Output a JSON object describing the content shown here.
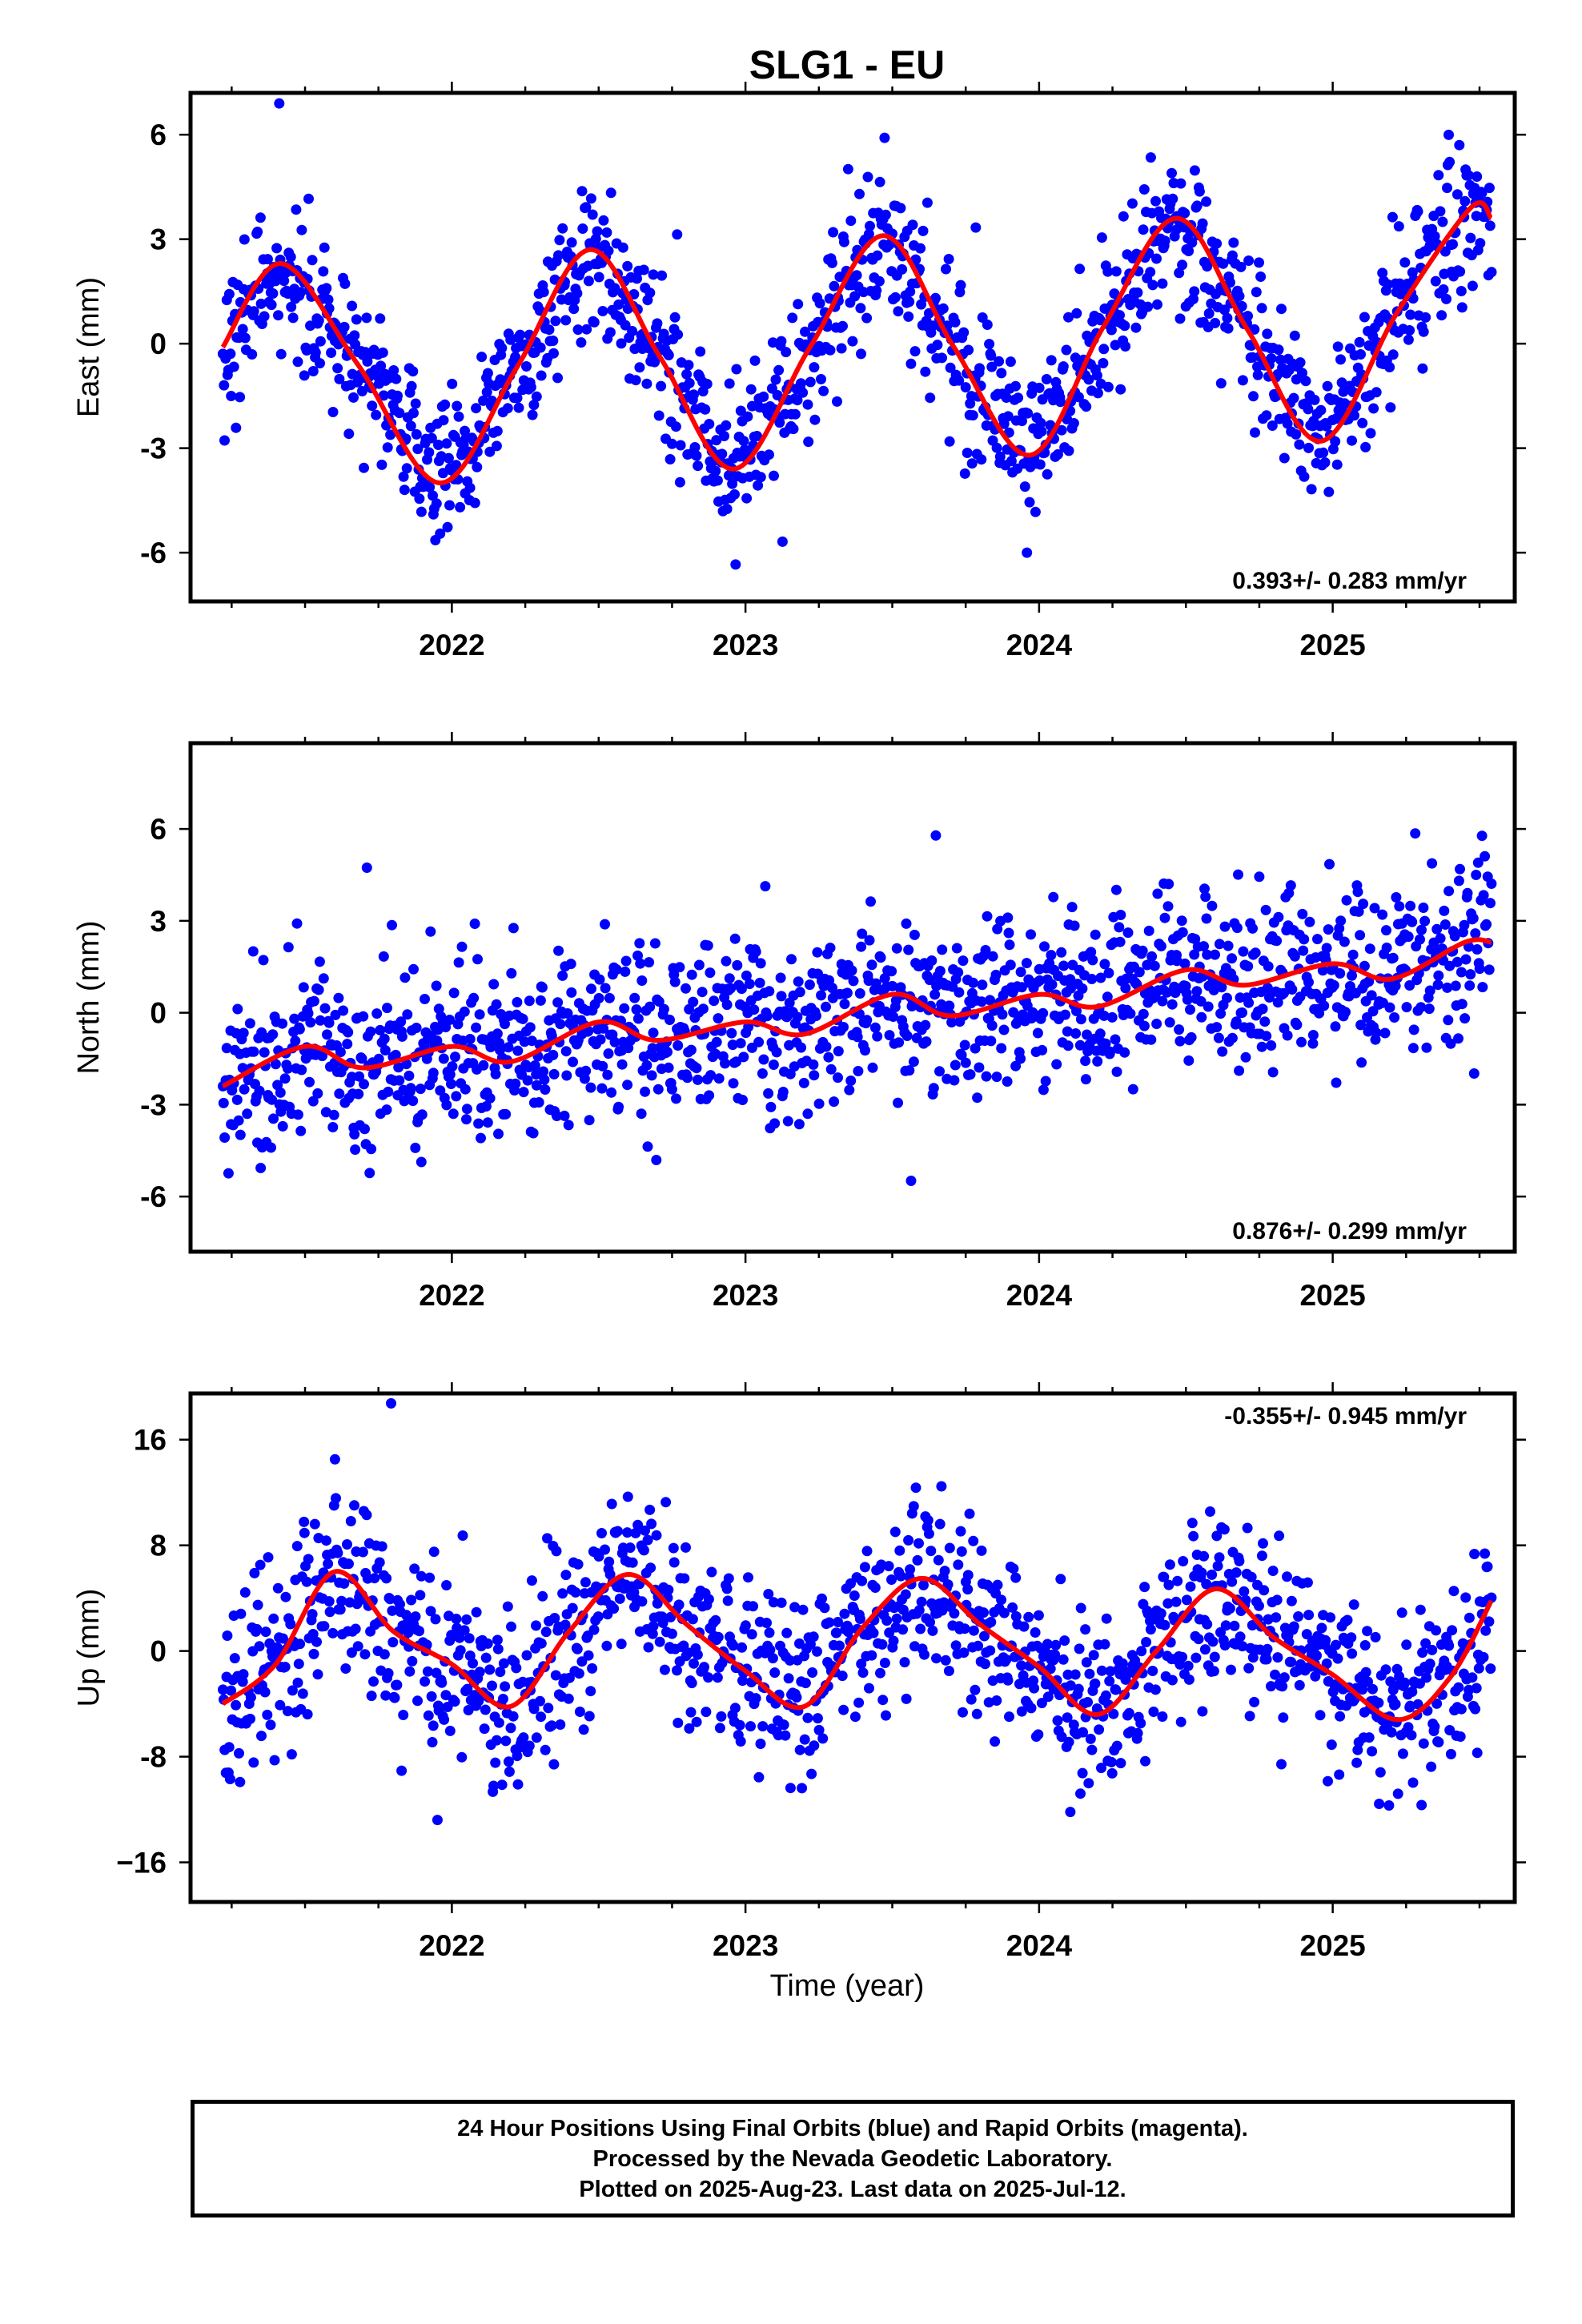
{
  "title": "SLG1 - EU",
  "x_axis_label": "Time (year)",
  "caption": [
    "24 Hour Positions Using Final Orbits (blue) and Rapid Orbits (magenta).",
    "Processed by the Nevada Geodetic Laboratory.",
    "Plotted on 2025-Aug-23. Last data on 2025-Jul-12."
  ],
  "colors": {
    "points": "#0000ff",
    "fit": "#ff0000",
    "frame": "#000000"
  },
  "chart_data": [
    {
      "type": "scatter",
      "name": "east",
      "ylabel": "East (mm)",
      "xlim": [
        2021.11,
        2025.62
      ],
      "ylim": [
        -7.4,
        7.2
      ],
      "x_ticks": [
        2022,
        2023,
        2024,
        2025
      ],
      "y_ticks": [
        6,
        3,
        0,
        -3,
        -6
      ],
      "y_tick_labels": [
        "6",
        "3",
        "0",
        "-3",
        "-6"
      ],
      "rate_label": "0.393+/- 0.283 mm/yr",
      "rate_label_position": "bottom-right",
      "fit_curve": {
        "x": [
          2021.22,
          2021.42,
          2021.68,
          2021.96,
          2022.22,
          2022.47,
          2022.71,
          2022.96,
          2023.22,
          2023.47,
          2023.71,
          2023.97,
          2024.22,
          2024.47,
          2024.71,
          2024.96,
          2025.22,
          2025.47,
          2025.54
        ],
        "y": [
          -0.1,
          2.3,
          -0.6,
          -4.0,
          -0.7,
          2.7,
          -0.4,
          -3.6,
          -0.1,
          3.1,
          -0.1,
          -3.2,
          0.5,
          3.6,
          0.4,
          -2.8,
          0.9,
          3.9,
          3.6
        ]
      },
      "points": {
        "period": 1.0,
        "phase": 2021.22,
        "amplitude": [
          3.1,
          3.7
        ],
        "trend": 0.393,
        "scatter_sd": 1.05,
        "x_start": 2021.22,
        "x_end": 2025.54,
        "count": 1350
      }
    },
    {
      "type": "scatter",
      "name": "north",
      "ylabel": "North (mm)",
      "xlim": [
        2021.11,
        2025.62
      ],
      "ylim": [
        -7.8,
        8.8
      ],
      "x_ticks": [
        2022,
        2023,
        2024,
        2025
      ],
      "y_ticks": [
        6,
        3,
        0,
        -3,
        -6
      ],
      "y_tick_labels": [
        "6",
        "3",
        "0",
        "-3",
        "-6"
      ],
      "rate_label": "0.876+/- 0.299 mm/yr",
      "rate_label_position": "bottom-right",
      "fit_curve": {
        "x": [
          2021.22,
          2021.5,
          2021.7,
          2022.0,
          2022.2,
          2022.5,
          2022.7,
          2023.0,
          2023.2,
          2023.5,
          2023.7,
          2024.0,
          2024.2,
          2024.5,
          2024.7,
          2025.0,
          2025.2,
          2025.45,
          2025.54
        ],
        "y": [
          -2.4,
          -1.1,
          -1.8,
          -1.1,
          -1.6,
          -0.3,
          -0.9,
          -0.3,
          -0.7,
          0.6,
          -0.1,
          0.6,
          0.2,
          1.4,
          0.9,
          1.6,
          1.1,
          2.3,
          2.3
        ]
      },
      "points": {
        "period": 0.5,
        "phase": 2021.22,
        "amplitude": [
          0.5,
          0.5
        ],
        "trend": 0.876,
        "scatter_sd": 1.4,
        "x_start": 2021.22,
        "x_end": 2025.54,
        "count": 1350
      }
    },
    {
      "type": "scatter",
      "name": "up",
      "ylabel": "Up (mm)",
      "xlim": [
        2021.11,
        2025.62
      ],
      "ylim": [
        -19,
        19.5
      ],
      "x_ticks": [
        2022,
        2023,
        2024,
        2025
      ],
      "y_ticks": [
        16,
        8,
        0,
        -8,
        -16
      ],
      "y_tick_labels": [
        "16",
        "8",
        "0",
        "-8",
        "−16"
      ],
      "rate_label": "-0.355+/- 0.945 mm/yr",
      "rate_label_position": "top-right",
      "fit_curve": {
        "x": [
          2021.22,
          2021.4,
          2021.6,
          2021.8,
          2022.0,
          2022.2,
          2022.4,
          2022.6,
          2022.8,
          2023.0,
          2023.2,
          2023.4,
          2023.6,
          2023.8,
          2024.0,
          2024.2,
          2024.4,
          2024.6,
          2024.8,
          2025.0,
          2025.22,
          2025.4,
          2025.54
        ],
        "y": [
          -4.0,
          -1.0,
          6.0,
          1.5,
          -1.0,
          -4.2,
          1.5,
          5.8,
          2.0,
          -1.5,
          -4.2,
          1.8,
          5.5,
          2.0,
          -1.2,
          -4.8,
          0.0,
          4.7,
          1.0,
          -1.8,
          -5.2,
          -2.0,
          3.8
        ]
      },
      "points": {
        "period": 1.0,
        "phase": 2021.22,
        "amplitude": [
          4.5,
          4.5
        ],
        "trend": -0.355,
        "scatter_sd": 3.4,
        "x_start": 2021.22,
        "x_end": 2025.54,
        "count": 1350
      }
    }
  ]
}
